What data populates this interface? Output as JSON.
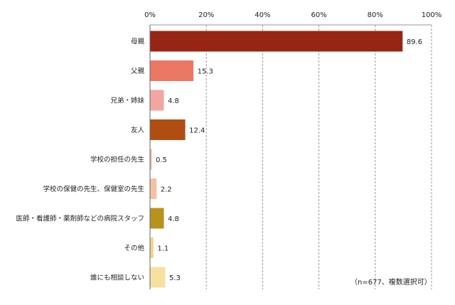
{
  "chart_data": {
    "type": "bar",
    "orientation": "horizontal",
    "categories": [
      "母親",
      "父親",
      "兄弟・姉妹",
      "友人",
      "学校の担任の先生",
      "学校の保健の先生、保健室の先生",
      "医師・看護師・薬剤師などの病院スタッフ",
      "その他",
      "誰にも相談しない"
    ],
    "values": [
      89.6,
      15.3,
      4.8,
      12.4,
      0.5,
      2.2,
      4.8,
      1.1,
      5.3
    ],
    "value_labels": [
      "89.6",
      "15.3",
      "4.8",
      "12.4",
      "0.5",
      "2.2",
      "4.8",
      "1.1",
      "5.3"
    ],
    "colors": [
      "#962515",
      "#ec7765",
      "#f3a6a1",
      "#b04d12",
      "#f2b9a6",
      "#f6c0a2",
      "#b8921c",
      "#f1d48c",
      "#f6e1a1"
    ],
    "xlim": [
      0,
      100
    ],
    "ticks": [
      0,
      20,
      40,
      60,
      80,
      100
    ],
    "tick_labels": [
      "0%",
      "20%",
      "40%",
      "60%",
      "80%",
      "100%"
    ],
    "grid": true,
    "title": "",
    "xlabel": "",
    "ylabel": ""
  },
  "note": "（n=677、複数選択可）"
}
